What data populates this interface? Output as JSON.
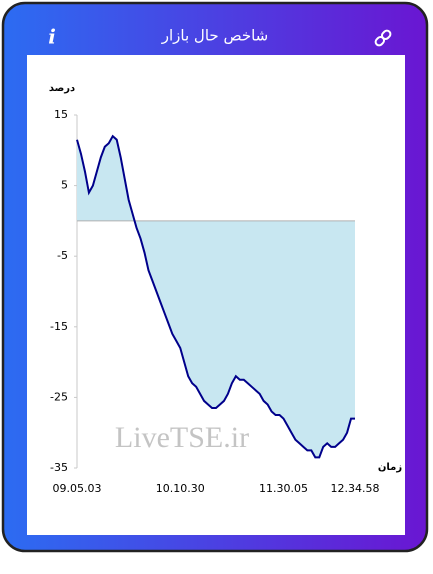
{
  "header": {
    "info": "i"
  },
  "chart_data": {
    "type": "area",
    "title": "شاخص حال بازار",
    "ylabel": "درصد",
    "xlabel": "زمان",
    "annotation": "LiveTSE.ir",
    "categories": [
      "09.05.03",
      null,
      null,
      null,
      null,
      null,
      null,
      null,
      null,
      null,
      null,
      null,
      null,
      null,
      null,
      null,
      null,
      null,
      null,
      null,
      null,
      null,
      null,
      null,
      null,
      null,
      "10.10.30",
      null,
      null,
      null,
      null,
      null,
      null,
      null,
      null,
      null,
      null,
      null,
      null,
      null,
      null,
      null,
      null,
      null,
      null,
      null,
      null,
      null,
      null,
      null,
      null,
      null,
      "11.30.05",
      null,
      null,
      null,
      null,
      null,
      null,
      null,
      null,
      null,
      null,
      null,
      null,
      null,
      null,
      null,
      null,
      null,
      "12.34.58"
    ],
    "values": [
      11.5,
      9.5,
      7,
      4,
      5,
      7,
      9,
      10.5,
      11,
      12,
      11.5,
      9,
      6,
      3,
      1,
      -1,
      -2.5,
      -4.5,
      -7,
      -8.5,
      -10,
      -11.5,
      -13,
      -14.5,
      -16,
      -17,
      -18,
      -20,
      -22,
      -23,
      -23.5,
      -24.5,
      -25.5,
      -26,
      -26.5,
      -26.5,
      -26,
      -25.5,
      -24.5,
      -23,
      -22,
      -22.5,
      -22.5,
      -23,
      -23.5,
      -24,
      -24.5,
      -25.5,
      -26,
      -27,
      -27.5,
      -27.5,
      -28,
      -29,
      -30,
      -31,
      -31.5,
      -32,
      -32.5,
      -32.5,
      -33.5,
      -33.5,
      -32,
      -31.5,
      -32,
      -32,
      -31.5,
      -31,
      -30,
      -28,
      -28
    ],
    "color": "#00008b",
    "fill": "#c8e7f1",
    "ylim": [
      -35,
      15
    ],
    "yticks": [
      15,
      5,
      -5,
      -15,
      -25,
      -35
    ],
    "grid": false
  }
}
